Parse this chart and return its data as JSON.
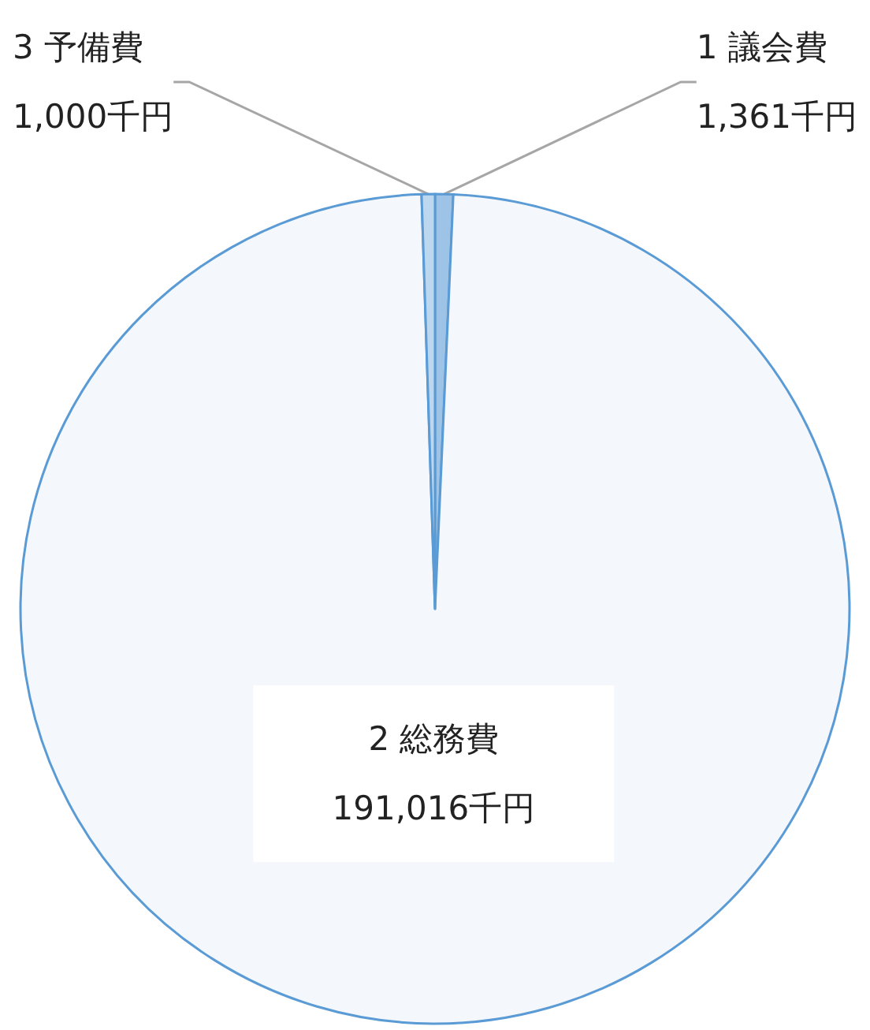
{
  "chart_data": {
    "type": "pie",
    "categories": [
      "1 議会費",
      "2 総務費",
      "3 予備費"
    ],
    "values": [
      1361,
      191016,
      1000
    ],
    "value_labels": [
      "1,361千円",
      "191,016千円",
      "1,000千円"
    ],
    "colors": [
      "#9dc3e6",
      "#f4f8fc",
      "#bdd7ee"
    ],
    "legend": false
  }
}
